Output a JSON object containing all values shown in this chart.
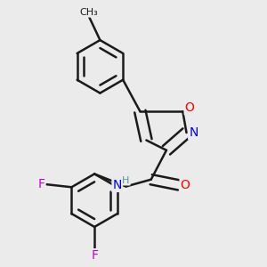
{
  "background_color": "#ebebeb",
  "bond_color": "#1a1a1a",
  "bond_width": 1.8,
  "atom_colors": {
    "O": "#ff0000",
    "N": "#0000ee",
    "F": "#cc00cc",
    "H": "#4a9a9a",
    "C": "#1a1a1a"
  },
  "font_size": 10,
  "font_size_small": 8
}
